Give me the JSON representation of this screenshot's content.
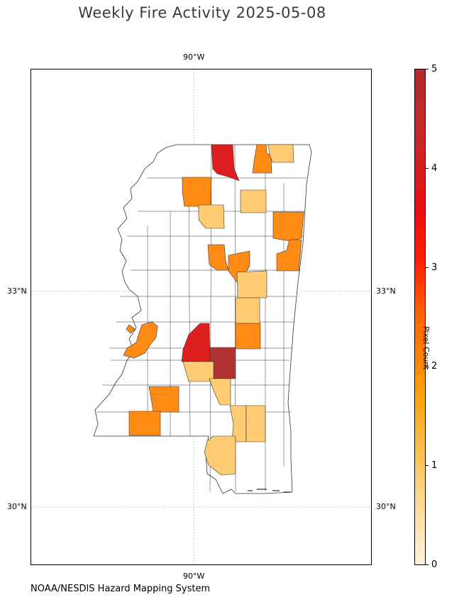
{
  "title": "Weekly Fire Activity 2025-05-08",
  "source_note": "NOAA/NESDIS Hazard Mapping System",
  "axes": {
    "lon_label_top": "90°W",
    "lon_label_bottom": "90°W",
    "lat_labels": [
      "33°N",
      "30°N"
    ]
  },
  "colorbar": {
    "title": "Pixel Count",
    "ticks": [
      "0",
      "1",
      "2",
      "3",
      "4",
      "5"
    ],
    "min": 0,
    "max": 5,
    "colors": {
      "0": "#ffffff",
      "1": "#ffcc74",
      "2": "#ff8a14",
      "4": "#de1f1f",
      "5": "#b03232"
    }
  },
  "chart_data": {
    "type": "heatmap",
    "region": "Mississippi counties",
    "value_label": "Pixel Count",
    "gridlines": {
      "longitude": [
        -90
      ],
      "latitude": [
        33,
        30
      ]
    },
    "counties_with_fire": [
      {
        "location": "north-central border",
        "value": 4
      },
      {
        "location": "northeast (east of top red)",
        "value": 2
      },
      {
        "location": "northeast corner",
        "value": 1
      },
      {
        "location": "north-west delta",
        "value": 2
      },
      {
        "location": "north-central",
        "value": 1
      },
      {
        "location": "north-central east",
        "value": 1
      },
      {
        "location": "east border (upper)",
        "value": 2
      },
      {
        "location": "east border (middle)",
        "value": 2
      },
      {
        "location": "central",
        "value": 2
      },
      {
        "location": "central-east (upper)",
        "value": 2
      },
      {
        "location": "central-east",
        "value": 1
      },
      {
        "location": "east-central",
        "value": 1
      },
      {
        "location": "east-central (lower)",
        "value": 2
      },
      {
        "location": "western river county",
        "value": 2
      },
      {
        "location": "central (Jackson area)",
        "value": 4
      },
      {
        "location": "central (Rankin area)",
        "value": 5
      },
      {
        "location": "south-central",
        "value": 1
      },
      {
        "location": "south-central (lower)",
        "value": 1
      },
      {
        "location": "southwest",
        "value": 2
      },
      {
        "location": "southwest corner",
        "value": 2
      },
      {
        "location": "southeast",
        "value": 1
      },
      {
        "location": "southeast (right)",
        "value": 1
      },
      {
        "location": "south coastal",
        "value": 1
      }
    ]
  }
}
